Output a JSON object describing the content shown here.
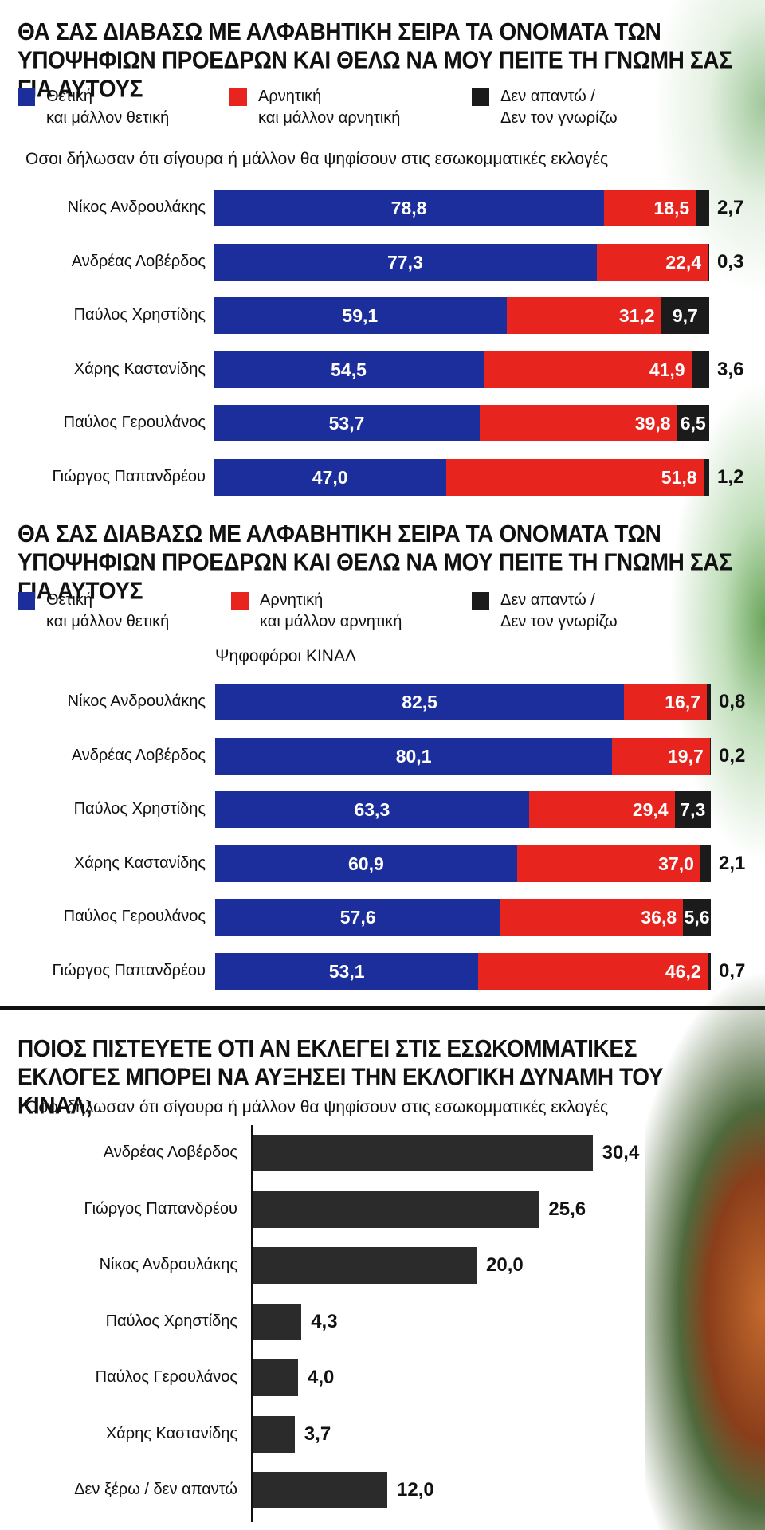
{
  "colors": {
    "positive": "#1c2e9b",
    "negative": "#e8241f",
    "no_answer": "#1b1b1b",
    "dark_bar": "#2b2b2b"
  },
  "legend": {
    "positive": "Θετική\nκαι μάλλον θετική",
    "negative": "Αρνητική\nκαι μάλλον αρνητική",
    "no_answer": "Δεν απαντώ /\nΔεν τον γνωρίζω"
  },
  "section1": {
    "title": "ΘΑ ΣΑΣ ΔΙΑΒΑΣΩ ΜΕ ΑΛΦΑΒΗΤΙΚΗ ΣΕΙΡΑ ΤΑ ΟΝΟΜΑΤΑ ΤΩΝ ΥΠΟΨΗΦΙΩΝ ΠΡΟΕΔΡΩΝ ΚΑΙ ΘΕΛΩ ΝΑ ΜΟΥ ΠΕΙΤΕ ΤΗ ΓΝΩΜΗ ΣΑΣ ΓΙΑ ΑΥΤΟΥΣ",
    "subtitle": "Οσοι δήλωσαν ότι σίγουρα ή μάλλον θα ψηφίσουν στις εσωκομματικές εκλογές"
  },
  "section2": {
    "title": "ΘΑ ΣΑΣ ΔΙΑΒΑΣΩ ΜΕ ΑΛΦΑΒΗΤΙΚΗ ΣΕΙΡΑ ΤΑ ΟΝΟΜΑΤΑ ΤΩΝ ΥΠΟΨΗΦΙΩΝ ΠΡΟΕΔΡΩΝ ΚΑΙ ΘΕΛΩ ΝΑ ΜΟΥ ΠΕΙΤΕ ΤΗ ΓΝΩΜΗ ΣΑΣ ΓΙΑ ΑΥΤΟΥΣ",
    "subtitle": "Ψηφοφόροι ΚΙΝΑΛ"
  },
  "section3": {
    "title": "ΠΟΙΟΣ ΠΙΣΤΕΥΕΤΕ ΟΤΙ ΑΝ ΕΚΛΕΓΕΙ ΣΤΙΣ ΕΣΩΚΟΜΜΑΤΙΚΕΣ ΕΚΛΟΓΕΣ ΜΠΟΡΕΙ ΝΑ ΑΥΞΗΣΕΙ ΤΗΝ ΕΚΛΟΓΙΚΗ ΔΥΝΑΜΗ ΤΟΥ ΚΙΝΑΛ;",
    "subtitle": "Οσοι δήλωσαν ότι σίγουρα ή μάλλον θα ψηφίσουν στις εσωκομματικές εκλογές"
  },
  "chart_data": [
    {
      "type": "bar",
      "stacked": true,
      "orientation": "horizontal",
      "categories": [
        "Νίκος Ανδρουλάκης",
        "Ανδρέας Λοβέρδος",
        "Παύλος Χρηστίδης",
        "Χάρης Καστανίδης",
        "Παύλος Γερουλάνος",
        "Γιώργος Παπανδρέου"
      ],
      "series": [
        {
          "name": "Θετική και μάλλον θετική",
          "values": [
            78.8,
            77.3,
            59.1,
            54.5,
            53.7,
            47.0
          ],
          "labels": [
            "78,8",
            "77,3",
            "59,1",
            "54,5",
            "53,7",
            "47,0"
          ]
        },
        {
          "name": "Αρνητική και μάλλον αρνητική",
          "values": [
            18.5,
            22.4,
            31.2,
            41.9,
            39.8,
            51.8
          ],
          "labels": [
            "18,5",
            "22,4",
            "31,2",
            "41,9",
            "39,8",
            "51,8"
          ]
        },
        {
          "name": "Δεν απαντώ / Δεν τον γνωρίζω",
          "values": [
            2.7,
            0.3,
            9.7,
            3.6,
            6.5,
            1.2
          ],
          "labels": [
            "2,7",
            "0,3",
            "9,7",
            "3,6",
            "6,5",
            "1,2"
          ]
        }
      ],
      "xlim": [
        0,
        100
      ]
    },
    {
      "type": "bar",
      "stacked": true,
      "orientation": "horizontal",
      "categories": [
        "Νίκος Ανδρουλάκης",
        "Ανδρέας Λοβέρδος",
        "Παύλος Χρηστίδης",
        "Χάρης Καστανίδης",
        "Παύλος Γερουλάνος",
        "Γιώργος Παπανδρέου"
      ],
      "series": [
        {
          "name": "Θετική και μάλλον θετική",
          "values": [
            82.5,
            80.1,
            63.3,
            60.9,
            57.6,
            53.1
          ],
          "labels": [
            "82,5",
            "80,1",
            "63,3",
            "60,9",
            "57,6",
            "53,1"
          ]
        },
        {
          "name": "Αρνητική και μάλλον αρνητική",
          "values": [
            16.7,
            19.7,
            29.4,
            37.0,
            36.8,
            46.2
          ],
          "labels": [
            "16,7",
            "19,7",
            "29,4",
            "37,0",
            "36,8",
            "46,2"
          ]
        },
        {
          "name": "Δεν απαντώ / Δεν τον γνωρίζω",
          "values": [
            0.8,
            0.2,
            7.3,
            2.1,
            5.6,
            0.7
          ],
          "labels": [
            "0,8",
            "0,2",
            "7,3",
            "2,1",
            "5,6",
            "0,7"
          ]
        }
      ],
      "xlim": [
        0,
        100
      ]
    },
    {
      "type": "bar",
      "orientation": "horizontal",
      "categories": [
        "Ανδρέας Λοβέρδος",
        "Γιώργος Παπανδρέου",
        "Νίκος Ανδρουλάκης",
        "Παύλος Χρηστίδης",
        "Παύλος Γερουλάνος",
        "Χάρης Καστανίδης",
        "Δεν ξέρω / δεν απαντώ"
      ],
      "values": [
        30.4,
        25.6,
        20.0,
        4.3,
        4.0,
        3.7,
        12.0
      ],
      "labels": [
        "30,4",
        "25,6",
        "20,0",
        "4,3",
        "4,0",
        "3,7",
        "12,0"
      ],
      "xlim": [
        0,
        35
      ]
    }
  ]
}
